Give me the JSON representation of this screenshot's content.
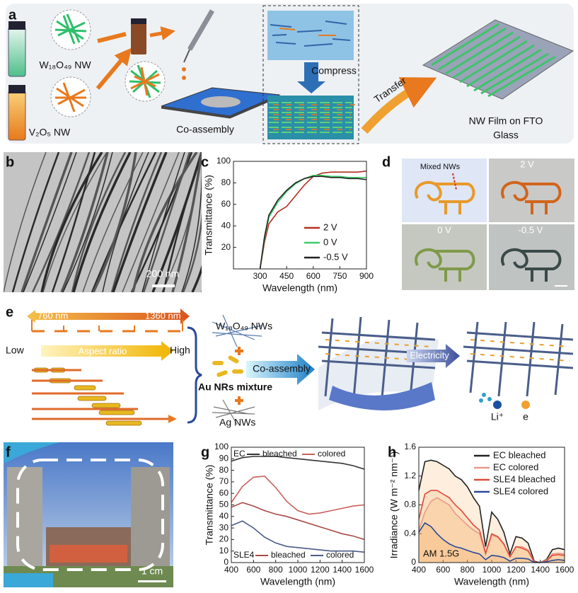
{
  "panel_labels": [
    "a",
    "b",
    "c",
    "d",
    "e",
    "f",
    "g",
    "h"
  ],
  "panel_a": {
    "w_nw": "W₁₈O₄₉ NW",
    "v_nw": "V₂O₅ NW",
    "co_assembly": "Co-assembly",
    "compress": "Compress",
    "transfer": "Transfer",
    "film": [
      "NW Film on FTO",
      "Glass"
    ]
  },
  "panel_b": {
    "scale": "200 nm"
  },
  "panel_d": {
    "mixed": "Mixed NWs",
    "labels": [
      "2 V",
      "0 V",
      "-0.5 V"
    ]
  },
  "panel_e": {
    "short": "760 nm",
    "long": "1360 nm",
    "low": "Low",
    "aspect": "Aspect ratio",
    "high": "High",
    "w_nws": "W₁₈O₄₉ NWs",
    "co_assembly": "Co-assembly",
    "au": "Au NRs mixture",
    "ag": "Ag NWs",
    "electricity": "Electricity",
    "li": "Li⁺",
    "e": "e"
  },
  "panel_f": {
    "scale": "1 cm"
  },
  "chart_data": [
    {
      "type": "line",
      "x_label": "Wavelength (nm)",
      "y_label": "Transmittance (%)",
      "x": [
        300,
        325,
        350,
        400,
        450,
        500,
        550,
        600,
        650,
        700,
        750,
        800,
        850,
        900
      ],
      "xlim": [
        150,
        900
      ],
      "xticks": [
        300,
        450,
        600,
        750,
        900
      ],
      "ylim": [
        0,
        100
      ],
      "yticks": [
        20,
        40,
        60,
        80,
        100
      ],
      "legend": "lower right",
      "series": [
        {
          "name": "2 V",
          "color": "#b03020",
          "values": [
            0,
            25,
            42,
            53,
            58,
            68,
            78,
            86,
            89,
            90,
            90,
            90,
            90,
            91
          ]
        },
        {
          "name": "0 V",
          "color": "#3ecf6a",
          "values": [
            0,
            28,
            48,
            62,
            72,
            79,
            84,
            87,
            87,
            86,
            86,
            85,
            85,
            85
          ]
        },
        {
          "name": "-0.5 V",
          "color": "#222222",
          "values": [
            0,
            30,
            50,
            64,
            73,
            80,
            84,
            86,
            86,
            85,
            85,
            84,
            84,
            83
          ]
        }
      ]
    },
    {
      "type": "line",
      "x_label": "Wavelength (nm)",
      "y_label": "Transmittance (%)",
      "x": [
        400,
        500,
        600,
        700,
        800,
        900,
        1000,
        1100,
        1200,
        1300,
        1400,
        1500,
        1600
      ],
      "xlim": [
        400,
        1600
      ],
      "xticks": [
        400,
        600,
        800,
        1000,
        1200,
        1400,
        1600
      ],
      "ylim": [
        0,
        100
      ],
      "yticks": [
        0,
        10,
        20,
        30,
        40,
        50,
        60,
        70,
        80,
        90,
        100
      ],
      "groups": [
        {
          "name": "EC",
          "series": [
            {
              "name": "bleached",
              "color": "#333333",
              "values": [
                88,
                91,
                92,
                92,
                92,
                91,
                90,
                89,
                88,
                87,
                86,
                84,
                81
              ]
            },
            {
              "name": "colored",
              "color": "#c8605a",
              "values": [
                52,
                66,
                74,
                75,
                65,
                53,
                45,
                42,
                43,
                45,
                47,
                49,
                50
              ]
            }
          ]
        },
        {
          "name": "SLE4",
          "series": [
            {
              "name": "bleached",
              "color": "#a84a44",
              "values": [
                48,
                52,
                49,
                45,
                42,
                40,
                37,
                34,
                31,
                28,
                25,
                23,
                20
              ]
            },
            {
              "name": "colored",
              "color": "#4a5a8a",
              "values": [
                32,
                36,
                30,
                22,
                17,
                14,
                13,
                12,
                11,
                10,
                10,
                10,
                9
              ]
            }
          ]
        }
      ]
    },
    {
      "type": "line",
      "x_label": "Wavelength (nm)",
      "y_label": "Irradiance (W m⁻² nm⁻¹)",
      "annotation": "AM 1.5G",
      "area": true,
      "x": [
        400,
        450,
        500,
        550,
        600,
        650,
        700,
        750,
        800,
        850,
        900,
        950,
        1000,
        1050,
        1100,
        1150,
        1200,
        1250,
        1300,
        1350,
        1400,
        1450,
        1500,
        1550,
        1600
      ],
      "xlim": [
        400,
        1600
      ],
      "xticks": [
        400,
        600,
        800,
        1000,
        1200,
        1400,
        1600
      ],
      "ylim": [
        0,
        1.6
      ],
      "yticks": [
        0,
        0.4,
        0.8,
        1.2,
        1.6
      ],
      "legend": "upper right",
      "series": [
        {
          "name": "EC bleached",
          "color": "#222222",
          "values": [
            1.0,
            1.4,
            1.42,
            1.4,
            1.35,
            1.3,
            1.2,
            1.15,
            1.05,
            0.9,
            0.78,
            0.22,
            0.7,
            0.6,
            0.42,
            0.12,
            0.36,
            0.34,
            0.27,
            0.02,
            0,
            0.04,
            0.18,
            0.2,
            0.18
          ]
        },
        {
          "name": "EC colored",
          "color": "#e89a8a",
          "values": [
            0.45,
            0.7,
            0.85,
            0.9,
            0.85,
            0.8,
            0.68,
            0.6,
            0.52,
            0.45,
            0.4,
            0.12,
            0.38,
            0.35,
            0.25,
            0.08,
            0.22,
            0.22,
            0.18,
            0.01,
            0,
            0.03,
            0.12,
            0.13,
            0.12
          ]
        },
        {
          "name": "SLE4 bleached",
          "color": "#e04a3a",
          "values": [
            0.6,
            0.95,
            1.0,
            1.0,
            0.95,
            0.9,
            0.8,
            0.72,
            0.62,
            0.52,
            0.45,
            0.13,
            0.4,
            0.36,
            0.26,
            0.08,
            0.22,
            0.2,
            0.16,
            0.01,
            0,
            0.02,
            0.1,
            0.11,
            0.1
          ]
        },
        {
          "name": "SLE4 colored",
          "color": "#2a4a9a",
          "values": [
            0.42,
            0.55,
            0.5,
            0.4,
            0.32,
            0.26,
            0.22,
            0.2,
            0.17,
            0.14,
            0.12,
            0.04,
            0.1,
            0.09,
            0.07,
            0.02,
            0.06,
            0.06,
            0.05,
            0,
            0,
            0.01,
            0.03,
            0.04,
            0.03
          ]
        }
      ]
    }
  ]
}
